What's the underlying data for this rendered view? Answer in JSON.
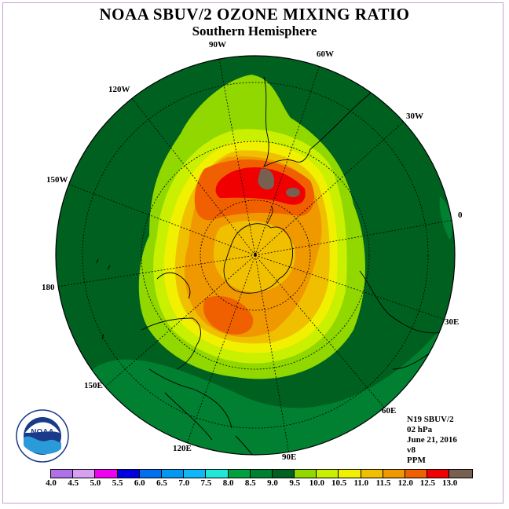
{
  "header": {
    "title": "NOAA SBUV/2 OZONE MIXING RATIO",
    "subtitle": "Southern Hemisphere"
  },
  "longitude_labels": [
    {
      "id": "90w",
      "text": "90W"
    },
    {
      "id": "60w",
      "text": "60W"
    },
    {
      "id": "120w",
      "text": "120W"
    },
    {
      "id": "30w",
      "text": "30W"
    },
    {
      "id": "150w",
      "text": "150W"
    },
    {
      "id": "0",
      "text": "0"
    },
    {
      "id": "180",
      "text": "180"
    },
    {
      "id": "30e",
      "text": "30E"
    },
    {
      "id": "150e",
      "text": "150E"
    },
    {
      "id": "60e",
      "text": "60E"
    },
    {
      "id": "120e",
      "text": "120E"
    },
    {
      "id": "90e",
      "text": "90E"
    }
  ],
  "info": {
    "instrument": "N19 SBUV/2",
    "level": "02 hPa",
    "date": "June 21, 2016",
    "version": "v8",
    "units": "PPM"
  },
  "colorbar": {
    "ticks": [
      "4.0",
      "4.5",
      "5.0",
      "5.5",
      "6.0",
      "6.5",
      "7.0",
      "7.5",
      "8.0",
      "8.5",
      "9.0",
      "9.5",
      "10.0",
      "10.5",
      "11.0",
      "11.5",
      "12.0",
      "12.5",
      "13.0"
    ],
    "colors": [
      "#b070e8",
      "#d8a0f0",
      "#f000f0",
      "#0000e0",
      "#0070f0",
      "#0098f0",
      "#10b8f8",
      "#20e8d8",
      "#00a040",
      "#008030",
      "#006020",
      "#90d800",
      "#c8f000",
      "#f0f000",
      "#f0c000",
      "#f09800",
      "#f06000",
      "#f00000",
      "#786050"
    ]
  },
  "logo": {
    "text": "NOAA"
  }
}
